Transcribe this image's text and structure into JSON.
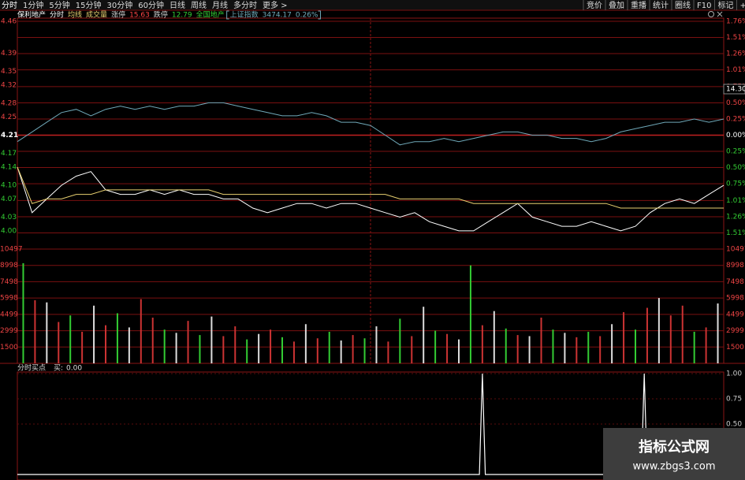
{
  "toolbar": {
    "left": [
      "分时",
      "1分钟",
      "5分钟",
      "15分钟",
      "30分钟",
      "60分钟",
      "日线",
      "周线",
      "月线",
      "多分时",
      "更多 >"
    ],
    "right": [
      "竞价",
      "叠加",
      "重播",
      "统计",
      "圈线",
      "F10",
      "标记",
      "+自选",
      "返"
    ]
  },
  "info": {
    "stock": "保利地产",
    "limit_up_label": "涨停",
    "limit_up": "15.63",
    "limit_down_label": "跌停",
    "limit_down": "12.79",
    "sector": "全国地产",
    "index_value": "3474.17",
    "index_change": "0.26%"
  },
  "cursor_label": "14.30",
  "watermark": {
    "title": "指标公式网",
    "url": "www.zbgs3.com"
  },
  "chart_data": [
    {
      "type": "line",
      "x": [
        0,
        5,
        10,
        15,
        20,
        25,
        30,
        35,
        40,
        45,
        50,
        55,
        60,
        65,
        70,
        75,
        80,
        85,
        90,
        95,
        100,
        105,
        110,
        115,
        120,
        125,
        130,
        135,
        140,
        145,
        150,
        155,
        160,
        165,
        170,
        175,
        180,
        185,
        190,
        195,
        200,
        205,
        210,
        215,
        220,
        225,
        230,
        235,
        240
      ],
      "xlim": [
        0,
        240
      ],
      "series": [
        {
          "name": "分时",
          "color": "#ffffff",
          "values": [
            4.14,
            4.04,
            4.07,
            4.1,
            4.12,
            4.13,
            4.09,
            4.08,
            4.08,
            4.09,
            4.08,
            4.09,
            4.08,
            4.08,
            4.07,
            4.07,
            4.05,
            4.04,
            4.05,
            4.06,
            4.06,
            4.05,
            4.06,
            4.06,
            4.05,
            4.04,
            4.03,
            4.04,
            4.02,
            4.01,
            4.0,
            4.0,
            4.02,
            4.04,
            4.06,
            4.03,
            4.02,
            4.01,
            4.01,
            4.02,
            4.01,
            4.0,
            4.01,
            4.04,
            4.06,
            4.07,
            4.06,
            4.08,
            4.1
          ]
        },
        {
          "name": "均线",
          "color": "#e8d070",
          "values": [
            4.14,
            4.06,
            4.07,
            4.07,
            4.08,
            4.08,
            4.09,
            4.09,
            4.09,
            4.09,
            4.09,
            4.09,
            4.09,
            4.09,
            4.08,
            4.08,
            4.08,
            4.08,
            4.08,
            4.08,
            4.08,
            4.08,
            4.08,
            4.08,
            4.08,
            4.08,
            4.07,
            4.07,
            4.07,
            4.07,
            4.07,
            4.06,
            4.06,
            4.06,
            4.06,
            4.06,
            4.06,
            4.06,
            4.06,
            4.06,
            4.06,
            4.05,
            4.05,
            4.05,
            4.05,
            4.05,
            4.05,
            4.05,
            4.05
          ]
        },
        {
          "name": "上证指数",
          "color": "#6fa8b8",
          "axis": "y2",
          "values": [
            -0.1,
            0.05,
            0.2,
            0.35,
            0.4,
            0.3,
            0.4,
            0.45,
            0.4,
            0.45,
            0.4,
            0.45,
            0.45,
            0.5,
            0.5,
            0.45,
            0.4,
            0.35,
            0.3,
            0.3,
            0.35,
            0.3,
            0.2,
            0.2,
            0.15,
            0.0,
            -0.15,
            -0.1,
            -0.1,
            -0.05,
            -0.1,
            -0.05,
            0.0,
            0.05,
            0.05,
            0.0,
            0.0,
            -0.05,
            -0.05,
            -0.1,
            -0.05,
            0.05,
            0.1,
            0.15,
            0.2,
            0.2,
            0.25,
            0.2,
            0.25
          ]
        }
      ],
      "ylim": [
        3.96,
        4.46
      ],
      "yticks": [
        4.46,
        4.39,
        4.35,
        4.32,
        4.28,
        4.25,
        4.21,
        4.17,
        4.14,
        {
          "value": 4.1,
          "label": "4.10"
        },
        4.07,
        4.03,
        {
          "value": 4,
          "label": "4.00"
        }
      ],
      "y2lim": [
        -1.76,
        1.76
      ],
      "y2ticks": [
        {
          "value": 1.76,
          "label": "1.76%"
        },
        {
          "value": 1.51,
          "label": "1.51%"
        },
        {
          "value": 1.26,
          "label": "1.26%"
        },
        {
          "value": 1.01,
          "label": "1.01%"
        },
        {
          "value": 0.75,
          "label": "0.75%"
        },
        {
          "value": 0.5,
          "label": "0.50%"
        },
        {
          "value": 0.25,
          "label": "0.25%"
        },
        {
          "value": 0,
          "label": "0.00%"
        },
        {
          "value": -0.25,
          "label": "0.25%"
        },
        {
          "value": -0.5,
          "label": "0.50%"
        },
        {
          "value": -0.75,
          "label": "0.75%"
        },
        {
          "value": -1.01,
          "label": "1.01%"
        },
        {
          "value": -1.26,
          "label": "1.26%"
        },
        {
          "value": -1.51,
          "label": "1.51%"
        }
      ],
      "grid": true
    },
    {
      "type": "bar",
      "title": "成交量",
      "values": [
        9200,
        5800,
        5600,
        3800,
        4400,
        2900,
        5300,
        3500,
        4600,
        3300,
        5900,
        4200,
        3100,
        2800,
        3900,
        2600,
        4300,
        2500,
        3400,
        2200,
        2700,
        3100,
        2400,
        2000,
        3600,
        2300,
        2900,
        2100,
        2600,
        2300,
        3400,
        2000,
        4100,
        2500,
        5200,
        3000,
        2700,
        2200,
        9000,
        3500,
        4800,
        3200,
        2600,
        2500,
        4200,
        3100,
        2800,
        2400,
        2900,
        2500,
        3600,
        4700,
        3100,
        5100,
        6000,
        4400,
        5300,
        2900,
        3300,
        5500
      ],
      "colors": [
        "#3c3",
        "#c33",
        "#ddd",
        "#c33",
        "#3c3",
        "#c33",
        "#ddd",
        "#c33",
        "#3c3",
        "#ddd",
        "#c33",
        "#c33",
        "#3c3",
        "#ddd",
        "#c33",
        "#3c3",
        "#ddd",
        "#c33",
        "#c33",
        "#3c3",
        "#ddd",
        "#c33",
        "#3c3",
        "#c33",
        "#ddd",
        "#c33",
        "#3c3",
        "#ddd",
        "#c33",
        "#3c3",
        "#ddd",
        "#c33",
        "#3c3",
        "#c33",
        "#ddd",
        "#3c3",
        "#c33",
        "#ddd",
        "#3c3",
        "#c33",
        "#ddd",
        "#3c3",
        "#c33",
        "#ddd",
        "#c33",
        "#3c3",
        "#ddd",
        "#c33",
        "#3c3",
        "#c33",
        "#ddd",
        "#c33",
        "#3c3",
        "#c33",
        "#ddd",
        "#c33",
        "#c33",
        "#3c3",
        "#c33",
        "#ddd"
      ],
      "ylim": [
        0,
        10497
      ],
      "yticks": [
        10497,
        8998,
        7498,
        5998,
        4499,
        2999,
        1500
      ]
    },
    {
      "type": "line",
      "title": "分时买点",
      "label": "买:",
      "value_label": "0.00",
      "x": [
        0,
        157,
        158,
        159,
        212,
        213,
        214,
        240
      ],
      "xlim": [
        0,
        240
      ],
      "series": [
        {
          "color": "#ffffff",
          "values": [
            0,
            0,
            1,
            0,
            0,
            1,
            0,
            0
          ]
        }
      ],
      "ylim": [
        0,
        1
      ],
      "yticks": [
        {
          "value": 1,
          "label": "1.00"
        },
        {
          "value": 0.75,
          "label": "0.75"
        },
        {
          "value": 0.5,
          "label": "0.50"
        }
      ]
    }
  ]
}
